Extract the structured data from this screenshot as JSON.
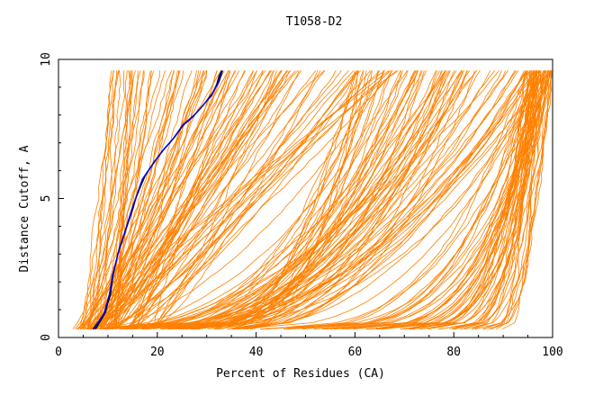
{
  "chart_data": {
    "type": "line",
    "title": "T1058-D2",
    "xlabel": "Percent of Residues (CA)",
    "ylabel": "Distance Cutoff, A",
    "xlim": [
      0,
      100
    ],
    "ylim": [
      0,
      10
    ],
    "x_ticks": [
      "0",
      "20",
      "40",
      "60",
      "80",
      "100"
    ],
    "y_ticks": [
      "0",
      "5",
      "10"
    ],
    "grid": false,
    "legend": "none",
    "colors": {
      "models": "#ff8000",
      "highlight_black": "#000000",
      "highlight_blue": "#0000ff"
    },
    "series": [
      {
        "color": "#000000",
        "x": [
          7,
          9,
          10.5,
          11,
          12,
          13.5,
          15,
          16,
          17,
          19,
          21,
          23,
          25,
          27,
          29,
          31,
          32,
          32.5,
          33
        ],
        "y": [
          0.3,
          0.8,
          1.5,
          2.2,
          3.0,
          3.8,
          4.6,
          5.2,
          5.7,
          6.2,
          6.7,
          7.1,
          7.6,
          7.9,
          8.3,
          8.7,
          9.1,
          9.4,
          9.6
        ]
      },
      {
        "color": "#000000",
        "x": [
          7.5,
          9.5,
          10.5,
          11.2,
          12.3,
          13.8,
          15.2,
          16.3,
          17.5,
          19.3,
          21.5,
          23.5,
          25.5,
          27.5,
          29.5,
          31.2,
          32.5,
          33.2
        ],
        "y": [
          0.3,
          0.9,
          1.6,
          2.4,
          3.2,
          4.0,
          4.8,
          5.3,
          5.8,
          6.3,
          6.8,
          7.2,
          7.7,
          8.0,
          8.4,
          8.8,
          9.2,
          9.6
        ]
      },
      {
        "color": "#0000ff",
        "x": [
          7.2,
          9.2,
          10.3,
          11,
          12.2,
          13.6,
          15,
          16.2,
          17.2,
          19.1,
          21.2,
          23.2,
          25.2,
          27.3,
          29.3,
          31,
          32.3,
          33
        ],
        "y": [
          0.3,
          0.85,
          1.55,
          2.3,
          3.1,
          3.9,
          4.7,
          5.25,
          5.75,
          6.25,
          6.75,
          7.15,
          7.65,
          7.95,
          8.35,
          8.75,
          9.15,
          9.6
        ]
      }
    ],
    "model_series_count": 240,
    "model_curve_families": [
      {
        "name": "",
        "x_start": [
          3,
          12
        ],
        "x_end": [
          10,
          30
        ],
        "count": 40,
        "shape": "steep"
      },
      {
        "name": "",
        "x_start": [
          4,
          20
        ],
        "x_end": [
          30,
          70
        ],
        "count": 60,
        "shape": "linear"
      },
      {
        "name": "",
        "x_start": [
          5,
          40
        ],
        "x_end": [
          60,
          100
        ],
        "count": 80,
        "shape": "convex"
      },
      {
        "name": "",
        "x_start": [
          40,
          90
        ],
        "x_end": [
          95,
          100
        ],
        "count": 60,
        "shape": "flat-then-rise"
      }
    ]
  }
}
